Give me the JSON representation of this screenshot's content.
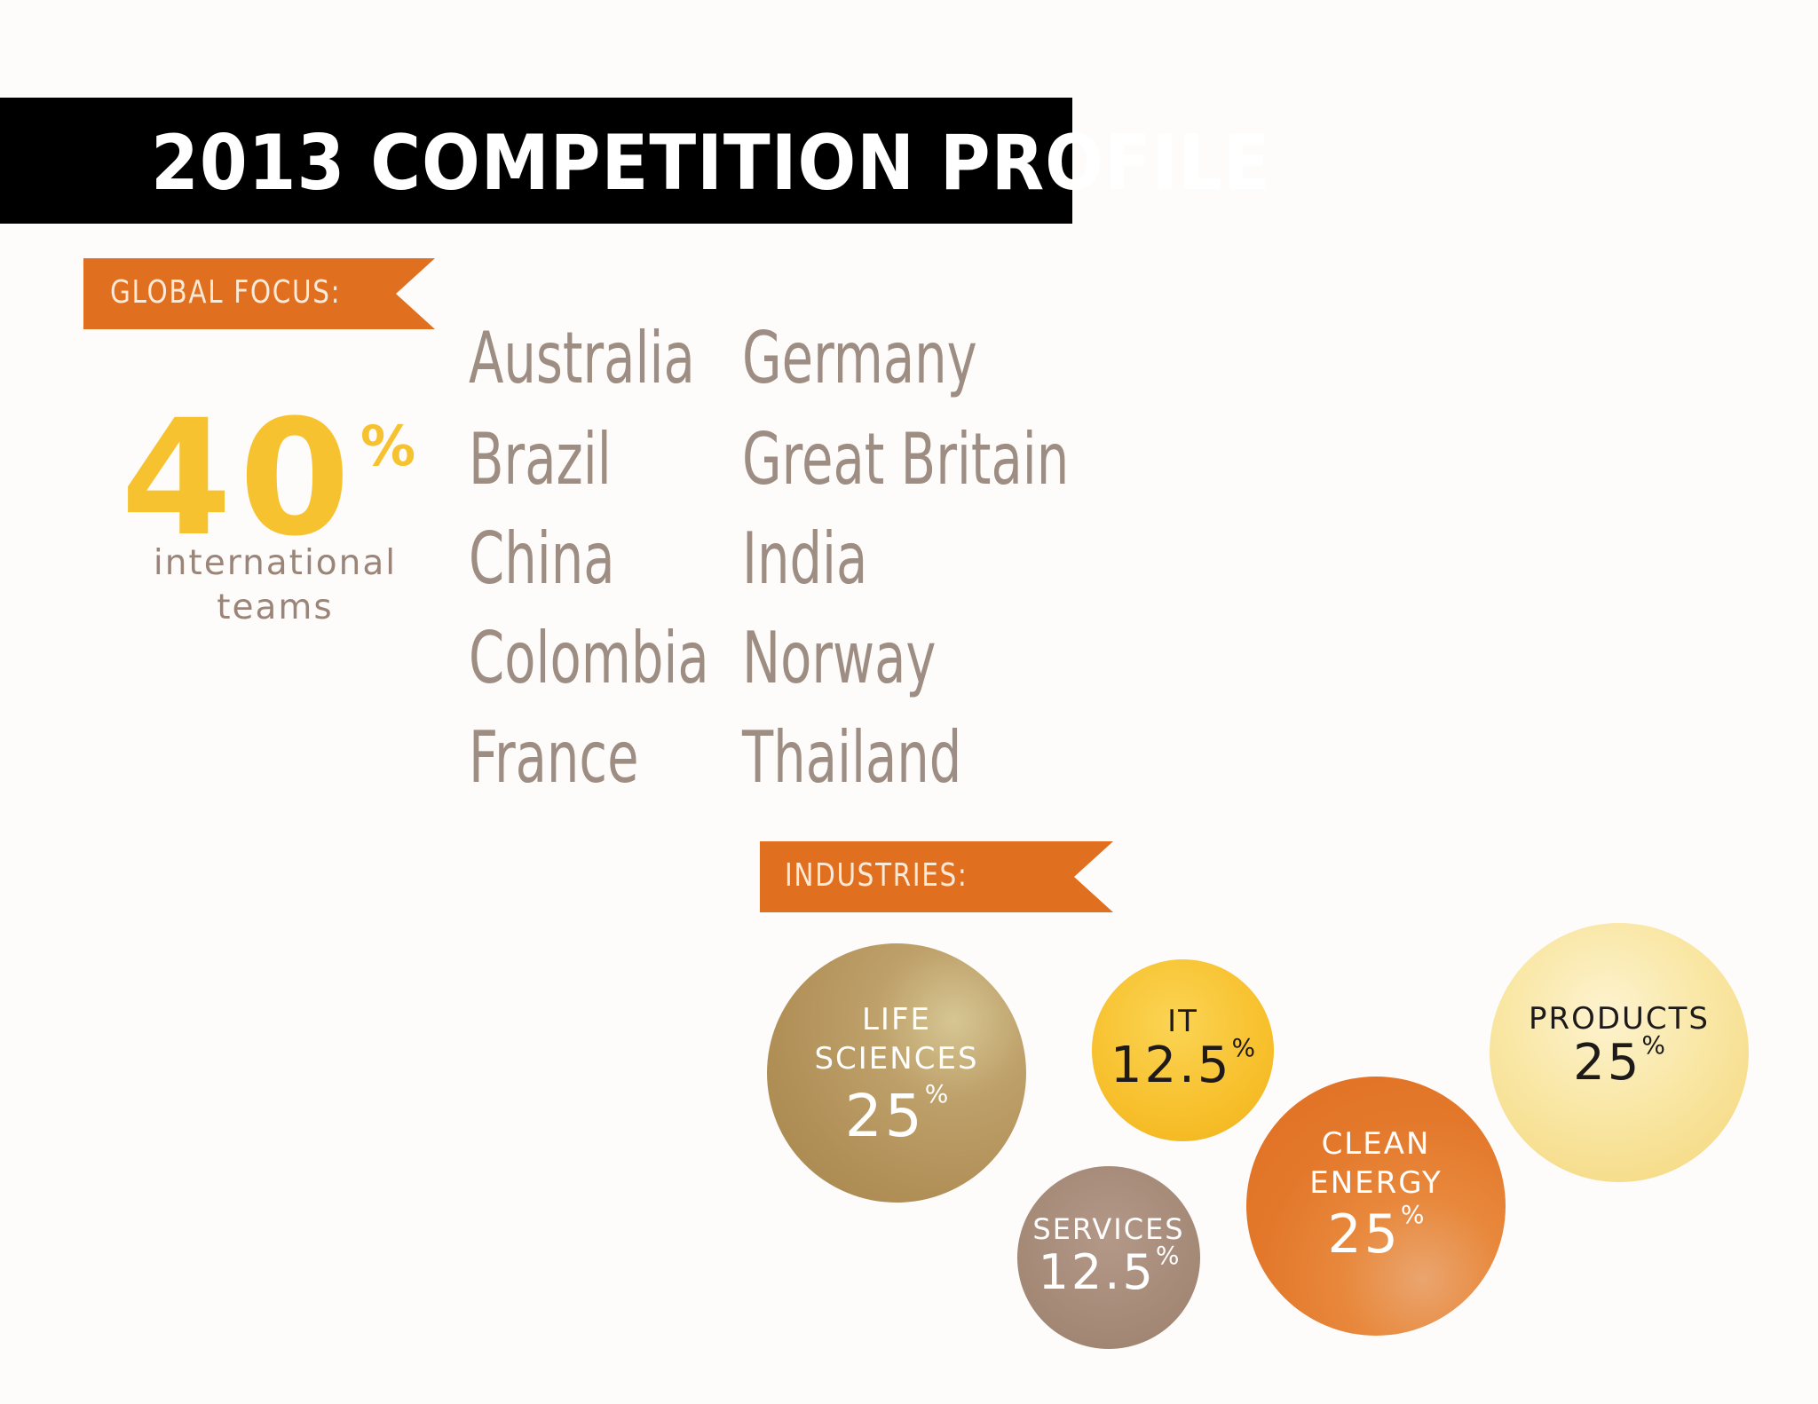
{
  "title": "2013 COMPETITION PROFILE",
  "global_focus": {
    "banner_label": "GLOBAL FOCUS:",
    "percent_value": "40",
    "percent_sign": "%",
    "caption_line1": "international",
    "caption_line2": "teams",
    "countries_col1": [
      "Australia",
      "Brazil",
      "China",
      "Colombia",
      "France"
    ],
    "countries_col2": [
      "Germany",
      "Great Britain",
      "India",
      "Norway",
      "Thailand"
    ]
  },
  "industries": {
    "banner_label": "INDUSTRIES:",
    "items": [
      {
        "name_line1": "LIFE",
        "name_line2": "SCIENCES",
        "value": "25",
        "unit": "%"
      },
      {
        "name_line1": "IT",
        "name_line2": "",
        "value": "12.5",
        "unit": "%"
      },
      {
        "name_line1": "PRODUCTS",
        "name_line2": "",
        "value": "25",
        "unit": "%"
      },
      {
        "name_line1": "SERVICES",
        "name_line2": "",
        "value": "12.5",
        "unit": "%"
      },
      {
        "name_line1": "CLEAN",
        "name_line2": "ENERGY",
        "value": "25",
        "unit": "%"
      }
    ]
  },
  "colors": {
    "orange": "#e0701f",
    "yellow": "#f7c22f",
    "gold": "#b8975a",
    "pale_yellow": "#f6dc86",
    "taupe": "#a68c7c",
    "country_text": "#9e8d82"
  }
}
